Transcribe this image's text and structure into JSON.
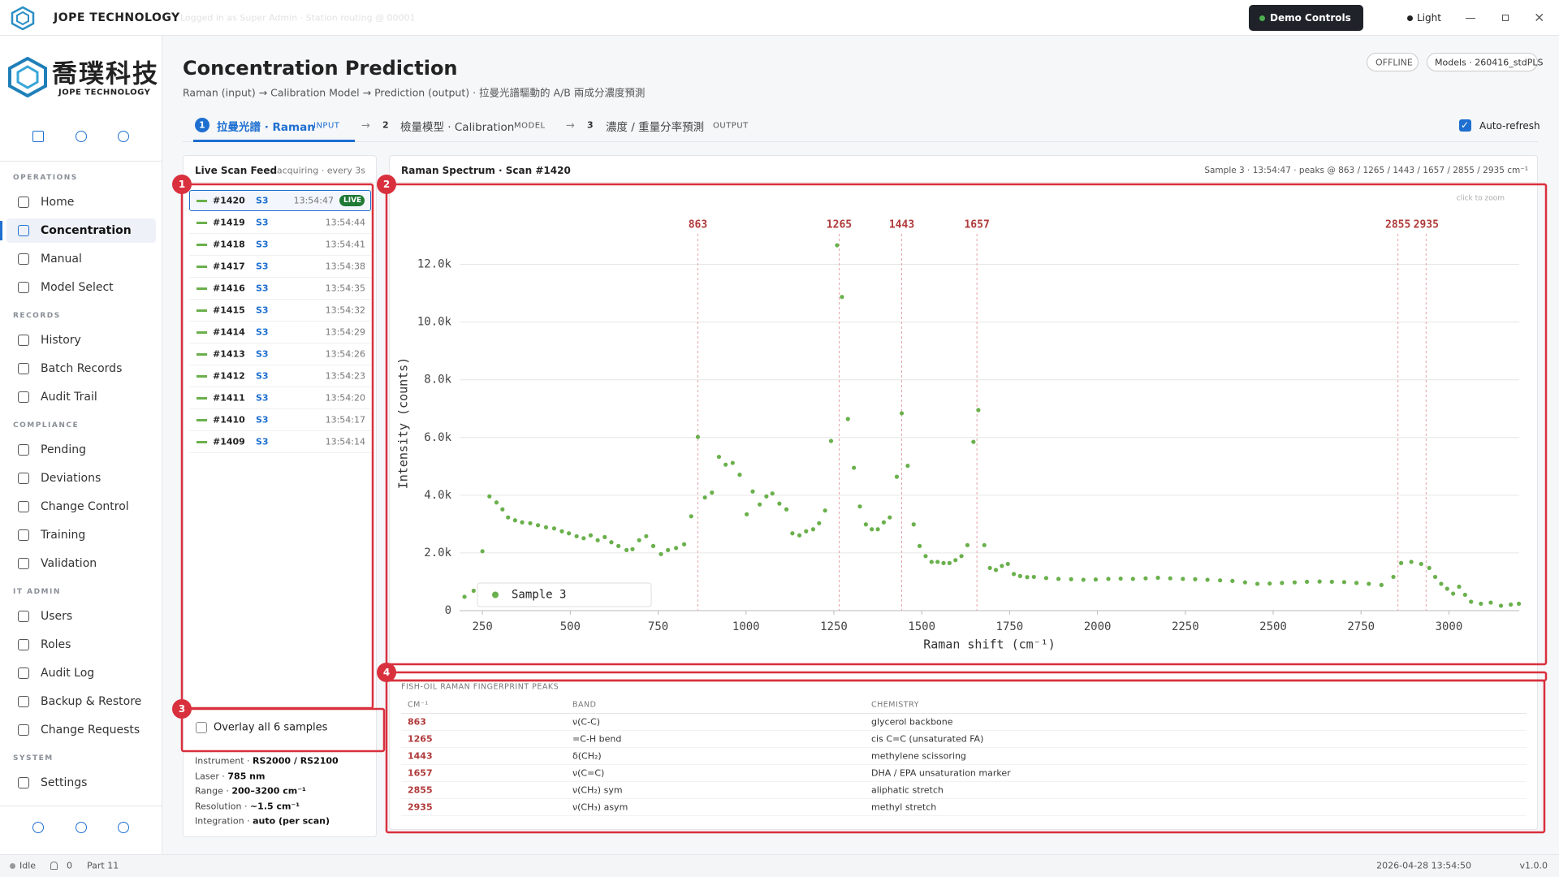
{
  "topbar": {
    "brand": "JOPE TECHNOLOGY",
    "status": "Logged in as Super Admin · Station routing @ 00001",
    "demo": "Demo Controls",
    "theme": "Light"
  },
  "sidebar": {
    "logo_cn": "喬璞科技",
    "logo_en": "JOPE TECHNOLOGY",
    "sections": [
      {
        "title": "OPERATIONS",
        "items": [
          "Home",
          "Concentration",
          "Manual",
          "Model Select"
        ]
      },
      {
        "title": "RECORDS",
        "items": [
          "History",
          "Batch Records",
          "Audit Trail"
        ]
      },
      {
        "title": "COMPLIANCE",
        "items": [
          "Pending",
          "Deviations",
          "Change Control",
          "Training",
          "Validation"
        ]
      },
      {
        "title": "IT ADMIN",
        "items": [
          "Users",
          "Roles",
          "Audit Log",
          "Backup & Restore",
          "Change Requests"
        ]
      },
      {
        "title": "SYSTEM",
        "items": [
          "Settings"
        ]
      }
    ]
  },
  "header": {
    "title": "Concentration Prediction",
    "subtitle": "Raman (input) → Calibration Model → Prediction (output) · 拉曼光譜驅動的 A/B 兩成分濃度預測",
    "badges": [
      "OFFLINE",
      "Models · 260416_stdPLS"
    ],
    "auto_refresh": "Auto-refresh"
  },
  "steps": [
    {
      "num": "1",
      "label": "拉曼光譜 · Raman",
      "tag": "INPUT"
    },
    {
      "num": "2",
      "label": "檢量模型 · Calibration",
      "tag": "MODEL"
    },
    {
      "num": "3",
      "label": "濃度 / 重量分率預測",
      "tag": "OUTPUT"
    }
  ],
  "step_arrows": [
    "→",
    "→"
  ],
  "feed": {
    "title": "Live Scan Feed",
    "status": "acquiring · every 3s",
    "live": "LIVE",
    "rows": [
      [
        "#1420",
        "S3",
        "13:54:47"
      ],
      [
        "#1419",
        "S3",
        "13:54:44"
      ],
      [
        "#1418",
        "S3",
        "13:54:41"
      ],
      [
        "#1417",
        "S3",
        "13:54:38"
      ],
      [
        "#1416",
        "S3",
        "13:54:35"
      ],
      [
        "#1415",
        "S3",
        "13:54:32"
      ],
      [
        "#1414",
        "S3",
        "13:54:29"
      ],
      [
        "#1413",
        "S3",
        "13:54:26"
      ],
      [
        "#1412",
        "S3",
        "13:54:23"
      ],
      [
        "#1411",
        "S3",
        "13:54:20"
      ],
      [
        "#1410",
        "S3",
        "13:54:17"
      ],
      [
        "#1409",
        "S3",
        "13:54:14"
      ]
    ],
    "overlay": "Overlay all 6 samples",
    "info": [
      [
        "Instrument · ",
        "RS2000 / RS2100"
      ],
      [
        "Laser · ",
        "785 nm"
      ],
      [
        "Range · ",
        "200–3200 cm⁻¹"
      ],
      [
        "Resolution · ",
        "~1.5 cm⁻¹"
      ],
      [
        "Integration · ",
        "auto (per scan)"
      ]
    ]
  },
  "chart_panel": {
    "title": "Raman Spectrum · Scan #1420",
    "meta": "Sample 3 · 13:54:47 · peaks @ 863 / 1265 / 1443 / 1657 / 2855 / 2935 cm⁻¹",
    "hint": "click to zoom"
  },
  "chart_data": {
    "type": "scatter",
    "xlabel": "Raman shift (cm⁻¹)",
    "ylabel": "Intensity (counts)",
    "x": [
      199,
      225,
      250,
      270,
      290,
      307,
      323,
      343,
      363,
      386,
      408,
      431,
      454,
      476,
      496,
      518,
      538,
      558,
      578,
      598,
      617,
      637,
      660,
      677,
      696,
      716,
      736,
      758,
      778,
      801,
      824,
      844,
      863,
      883,
      903,
      923,
      942,
      962,
      982,
      1002,
      1019,
      1039,
      1058,
      1075,
      1095,
      1115,
      1132,
      1152,
      1171,
      1191,
      1208,
      1225,
      1242,
      1259,
      1273,
      1290,
      1307,
      1324,
      1341,
      1358,
      1375,
      1392,
      1409,
      1429,
      1443,
      1460,
      1477,
      1494,
      1511,
      1528,
      1545,
      1562,
      1579,
      1596,
      1613,
      1630,
      1647,
      1661,
      1678,
      1694,
      1711,
      1728,
      1745,
      1762,
      1780,
      1800,
      1819,
      1854,
      1889,
      1925,
      1960,
      1995,
      2031,
      2066,
      2101,
      2137,
      2172,
      2207,
      2243,
      2278,
      2313,
      2349,
      2384,
      2420,
      2455,
      2490,
      2525,
      2561,
      2596,
      2632,
      2667,
      2702,
      2737,
      2772,
      2808,
      2842,
      2864,
      2893,
      2921,
      2944,
      2961,
      2978,
      2995,
      3012,
      3029,
      3046,
      3063,
      3091,
      3119,
      3148,
      3176,
      3199
    ],
    "series": [
      {
        "name": "Sample 3",
        "color": "#6ab04c",
        "values": [
          480,
          690,
          2060,
          3960,
          3750,
          3510,
          3230,
          3130,
          3060,
          3030,
          2960,
          2890,
          2850,
          2750,
          2680,
          2580,
          2510,
          2610,
          2440,
          2550,
          2370,
          2240,
          2100,
          2130,
          2440,
          2580,
          2240,
          1960,
          2100,
          2170,
          2300,
          3270,
          6020,
          3920,
          4090,
          5330,
          5060,
          5120,
          4710,
          3340,
          4130,
          3680,
          3960,
          4060,
          3710,
          3510,
          2680,
          2610,
          2750,
          2820,
          3030,
          3470,
          5880,
          12660,
          10870,
          6640,
          4950,
          3610,
          2990,
          2820,
          2820,
          3060,
          3230,
          4640,
          6840,
          5020,
          2990,
          2240,
          1890,
          1690,
          1690,
          1650,
          1650,
          1750,
          1890,
          2270,
          5850,
          6950,
          2270,
          1480,
          1410,
          1550,
          1620,
          1270,
          1200,
          1160,
          1170,
          1130,
          1100,
          1090,
          1070,
          1080,
          1100,
          1110,
          1100,
          1120,
          1140,
          1120,
          1100,
          1090,
          1070,
          1050,
          1030,
          980,
          930,
          940,
          960,
          980,
          1000,
          1010,
          1000,
          990,
          960,
          930,
          890,
          1170,
          1650,
          1690,
          1620,
          1480,
          1170,
          930,
          760,
          590,
          830,
          550,
          310,
          240,
          280,
          170,
          210,
          240
        ]
      }
    ],
    "xlim": [
      185,
      3200
    ],
    "xticks": [
      250,
      500,
      750,
      1000,
      1250,
      1500,
      1750,
      2000,
      2250,
      2500,
      2750,
      3000
    ],
    "ylim": [
      0,
      13000
    ],
    "yticks": [
      0,
      {
        "value": 2000,
        "label": "2.0k"
      },
      {
        "value": 4000,
        "label": "4.0k"
      },
      {
        "value": 6000,
        "label": "6.0k"
      },
      {
        "value": 8000,
        "label": "8.0k"
      },
      {
        "value": 10000,
        "label": "10.0k"
      },
      {
        "value": 12000,
        "label": "12.0k"
      }
    ],
    "peaks": [
      863,
      1265,
      1443,
      1657,
      2855,
      2935
    ],
    "grid": true,
    "legend": "lower left"
  },
  "peaks_table": {
    "title": "FISH-OIL RAMAN FINGERPRINT PEAKS",
    "columns": [
      "CM⁻¹",
      "BAND",
      "CHEMISTRY"
    ],
    "rows": [
      [
        "863",
        "ν(C-C)",
        "glycerol backbone"
      ],
      [
        "1265",
        "=C-H bend",
        "cis C=C (unsaturated FA)"
      ],
      [
        "1443",
        "δ(CH₂)",
        "methylene scissoring"
      ],
      [
        "1657",
        "ν(C=C)",
        "DHA / EPA unsaturation marker"
      ],
      [
        "2855",
        "ν(CH₂) sym",
        "aliphatic stretch"
      ],
      [
        "2935",
        "ν(CH₃) asym",
        "methyl stretch"
      ]
    ]
  },
  "statusbar": {
    "state": "Idle",
    "alerts": "0",
    "mode": "Part 11",
    "datetime": "2026-04-28 13:54:50",
    "version": "v1.0.0"
  },
  "annotations": [
    "1",
    "2",
    "3",
    "4"
  ]
}
